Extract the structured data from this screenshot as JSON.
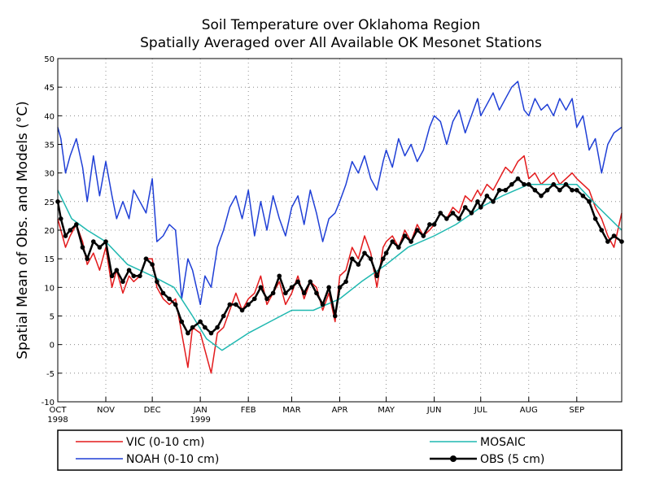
{
  "chart_data": {
    "type": "line",
    "title": "Soil Temperature over Oklahoma Region",
    "subtitle": "Spatially Averaged over All Available OK Mesonet Stations",
    "ylabel": "Spatial Mean of Obs. and Models (°C)",
    "ylim": [
      -10,
      50
    ],
    "yticks": [
      -10,
      -5,
      0,
      5,
      10,
      15,
      20,
      25,
      30,
      35,
      40,
      45,
      50
    ],
    "xlim": [
      "1998-10-01",
      "1999-09-30"
    ],
    "xticks": [
      {
        "date": "1998-10-01",
        "label": "OCT",
        "sublabel": "1998"
      },
      {
        "date": "1998-11-01",
        "label": "NOV",
        "sublabel": ""
      },
      {
        "date": "1998-12-01",
        "label": "DEC",
        "sublabel": ""
      },
      {
        "date": "1999-01-01",
        "label": "JAN",
        "sublabel": "1999"
      },
      {
        "date": "1999-02-01",
        "label": "FEB",
        "sublabel": ""
      },
      {
        "date": "1999-03-01",
        "label": "MAR",
        "sublabel": ""
      },
      {
        "date": "1999-04-01",
        "label": "APR",
        "sublabel": ""
      },
      {
        "date": "1999-05-01",
        "label": "MAY",
        "sublabel": ""
      },
      {
        "date": "1999-06-01",
        "label": "JUN",
        "sublabel": ""
      },
      {
        "date": "1999-07-01",
        "label": "JUL",
        "sublabel": ""
      },
      {
        "date": "1999-08-01",
        "label": "AUG",
        "sublabel": ""
      },
      {
        "date": "1999-09-01",
        "label": "SEP",
        "sublabel": ""
      }
    ],
    "grid": true,
    "legend": "bottom",
    "series": [
      {
        "name": "VIC (0-10 cm)",
        "color": "#e31a1c",
        "marker": "none",
        "x": [
          "1998-10-01",
          "1998-10-03",
          "1998-10-06",
          "1998-10-09",
          "1998-10-13",
          "1998-10-17",
          "1998-10-20",
          "1998-10-24",
          "1998-10-28",
          "1998-11-01",
          "1998-11-05",
          "1998-11-08",
          "1998-11-12",
          "1998-11-16",
          "1998-11-19",
          "1998-11-23",
          "1998-11-27",
          "1998-12-01",
          "1998-12-04",
          "1998-12-08",
          "1998-12-12",
          "1998-12-16",
          "1998-12-20",
          "1998-12-24",
          "1998-12-27",
          "1999-01-01",
          "1999-01-04",
          "1999-01-08",
          "1999-01-12",
          "1999-01-16",
          "1999-01-20",
          "1999-01-24",
          "1999-01-28",
          "1999-02-01",
          "1999-02-05",
          "1999-02-09",
          "1999-02-13",
          "1999-02-17",
          "1999-02-21",
          "1999-02-25",
          "1999-03-01",
          "1999-03-05",
          "1999-03-09",
          "1999-03-13",
          "1999-03-17",
          "1999-03-21",
          "1999-03-25",
          "1999-03-29",
          "1999-04-01",
          "1999-04-05",
          "1999-04-09",
          "1999-04-13",
          "1999-04-17",
          "1999-04-21",
          "1999-04-25",
          "1999-04-29",
          "1999-05-01",
          "1999-05-05",
          "1999-05-09",
          "1999-05-13",
          "1999-05-17",
          "1999-05-21",
          "1999-05-25",
          "1999-05-29",
          "1999-06-01",
          "1999-06-05",
          "1999-06-09",
          "1999-06-13",
          "1999-06-17",
          "1999-06-21",
          "1999-06-25",
          "1999-06-29",
          "1999-07-01",
          "1999-07-05",
          "1999-07-09",
          "1999-07-13",
          "1999-07-17",
          "1999-07-21",
          "1999-07-25",
          "1999-07-29",
          "1999-08-01",
          "1999-08-05",
          "1999-08-09",
          "1999-08-13",
          "1999-08-17",
          "1999-08-21",
          "1999-08-25",
          "1999-08-29",
          "1999-09-01",
          "1999-09-05",
          "1999-09-09",
          "1999-09-13",
          "1999-09-17",
          "1999-09-21",
          "1999-09-25",
          "1999-09-30"
        ],
        "y": [
          22,
          20,
          17,
          19,
          21,
          18,
          14,
          16,
          13,
          17,
          10,
          13,
          9,
          12,
          11,
          12,
          15,
          15,
          10,
          8,
          7,
          8,
          2,
          -4,
          3,
          2,
          -1,
          -5,
          2,
          3,
          6,
          9,
          6,
          8,
          9,
          12,
          7,
          9,
          11,
          7,
          9,
          12,
          8,
          11,
          10,
          6,
          9,
          4,
          12,
          13,
          17,
          15,
          19,
          16,
          10,
          17,
          18,
          19,
          17,
          20,
          18,
          21,
          19,
          20,
          21,
          23,
          22,
          24,
          23,
          26,
          25,
          27,
          26,
          28,
          27,
          29,
          31,
          30,
          32,
          33,
          29,
          30,
          28,
          29,
          30,
          28,
          29,
          30,
          29,
          28,
          27,
          24,
          22,
          19,
          17,
          23
        ]
      },
      {
        "name": "NOAH (0-10 cm)",
        "color": "#1f3fd6",
        "marker": "none",
        "x": [
          "1998-10-01",
          "1998-10-03",
          "1998-10-06",
          "1998-10-09",
          "1998-10-13",
          "1998-10-17",
          "1998-10-20",
          "1998-10-24",
          "1998-10-28",
          "1998-11-01",
          "1998-11-05",
          "1998-11-08",
          "1998-11-12",
          "1998-11-16",
          "1998-11-19",
          "1998-11-23",
          "1998-11-27",
          "1998-12-01",
          "1998-12-04",
          "1998-12-08",
          "1998-12-12",
          "1998-12-16",
          "1998-12-20",
          "1998-12-24",
          "1998-12-27",
          "1999-01-01",
          "1999-01-04",
          "1999-01-08",
          "1999-01-12",
          "1999-01-16",
          "1999-01-20",
          "1999-01-24",
          "1999-01-28",
          "1999-02-01",
          "1999-02-05",
          "1999-02-09",
          "1999-02-13",
          "1999-02-17",
          "1999-02-21",
          "1999-02-25",
          "1999-03-01",
          "1999-03-05",
          "1999-03-09",
          "1999-03-13",
          "1999-03-17",
          "1999-03-21",
          "1999-03-25",
          "1999-03-29",
          "1999-04-01",
          "1999-04-05",
          "1999-04-09",
          "1999-04-13",
          "1999-04-17",
          "1999-04-21",
          "1999-04-25",
          "1999-04-29",
          "1999-05-01",
          "1999-05-05",
          "1999-05-09",
          "1999-05-13",
          "1999-05-17",
          "1999-05-21",
          "1999-05-25",
          "1999-05-29",
          "1999-06-01",
          "1999-06-05",
          "1999-06-09",
          "1999-06-13",
          "1999-06-17",
          "1999-06-21",
          "1999-06-25",
          "1999-06-29",
          "1999-07-01",
          "1999-07-05",
          "1999-07-09",
          "1999-07-13",
          "1999-07-17",
          "1999-07-21",
          "1999-07-25",
          "1999-07-29",
          "1999-08-01",
          "1999-08-05",
          "1999-08-09",
          "1999-08-13",
          "1999-08-17",
          "1999-08-21",
          "1999-08-25",
          "1999-08-29",
          "1999-09-01",
          "1999-09-05",
          "1999-09-09",
          "1999-09-13",
          "1999-09-17",
          "1999-09-21",
          "1999-09-25",
          "1999-09-30"
        ],
        "y": [
          38,
          36,
          30,
          33,
          36,
          31,
          25,
          33,
          26,
          32,
          26,
          22,
          25,
          22,
          27,
          25,
          23,
          29,
          18,
          19,
          21,
          20,
          8,
          15,
          13,
          7,
          12,
          10,
          17,
          20,
          24,
          26,
          22,
          27,
          19,
          25,
          20,
          26,
          22,
          19,
          24,
          26,
          21,
          27,
          23,
          18,
          22,
          23,
          25,
          28,
          32,
          30,
          33,
          29,
          27,
          32,
          34,
          31,
          36,
          33,
          35,
          32,
          34,
          38,
          40,
          39,
          35,
          39,
          41,
          37,
          40,
          43,
          40,
          42,
          44,
          41,
          43,
          45,
          46,
          41,
          40,
          43,
          41,
          42,
          40,
          43,
          41,
          43,
          38,
          40,
          34,
          36,
          30,
          35,
          37,
          38
        ]
      },
      {
        "name": "MOSAIC",
        "color": "#1fb8b0",
        "marker": "none",
        "x": [
          "1998-10-01",
          "1998-10-10",
          "1998-10-20",
          "1998-11-01",
          "1998-11-15",
          "1998-12-01",
          "1998-12-15",
          "1998-12-27",
          "1999-01-05",
          "1999-01-15",
          "1999-02-01",
          "1999-02-15",
          "1999-03-01",
          "1999-03-15",
          "1999-04-01",
          "1999-04-15",
          "1999-05-01",
          "1999-05-15",
          "1999-06-01",
          "1999-06-15",
          "1999-07-01",
          "1999-07-15",
          "1999-08-01",
          "1999-08-15",
          "1999-09-01",
          "1999-09-15",
          "1999-09-30"
        ],
        "y": [
          27,
          22,
          20,
          18,
          14,
          12,
          10,
          5,
          1,
          -1,
          2,
          4,
          6,
          6,
          8,
          11,
          14,
          17,
          19,
          21,
          24,
          26,
          28,
          28,
          28,
          24,
          20
        ]
      },
      {
        "name": "OBS (5 cm)",
        "color": "#000000",
        "marker": "circle",
        "x": [
          "1998-10-01",
          "1998-10-03",
          "1998-10-06",
          "1998-10-09",
          "1998-10-13",
          "1998-10-17",
          "1998-10-20",
          "1998-10-24",
          "1998-10-28",
          "1998-11-01",
          "1998-11-05",
          "1998-11-08",
          "1998-11-12",
          "1998-11-16",
          "1998-11-19",
          "1998-11-23",
          "1998-11-27",
          "1998-12-01",
          "1998-12-04",
          "1998-12-08",
          "1998-12-12",
          "1998-12-16",
          "1998-12-20",
          "1998-12-24",
          "1998-12-27",
          "1999-01-01",
          "1999-01-04",
          "1999-01-08",
          "1999-01-12",
          "1999-01-16",
          "1999-01-20",
          "1999-01-24",
          "1999-01-28",
          "1999-02-01",
          "1999-02-05",
          "1999-02-09",
          "1999-02-13",
          "1999-02-17",
          "1999-02-21",
          "1999-02-25",
          "1999-03-01",
          "1999-03-05",
          "1999-03-09",
          "1999-03-13",
          "1999-03-17",
          "1999-03-21",
          "1999-03-25",
          "1999-03-29",
          "1999-04-01",
          "1999-04-05",
          "1999-04-09",
          "1999-04-13",
          "1999-04-17",
          "1999-04-21",
          "1999-04-25",
          "1999-04-29",
          "1999-05-01",
          "1999-05-05",
          "1999-05-09",
          "1999-05-13",
          "1999-05-17",
          "1999-05-21",
          "1999-05-25",
          "1999-05-29",
          "1999-06-01",
          "1999-06-05",
          "1999-06-09",
          "1999-06-13",
          "1999-06-17",
          "1999-06-21",
          "1999-06-25",
          "1999-06-29",
          "1999-07-01",
          "1999-07-05",
          "1999-07-09",
          "1999-07-13",
          "1999-07-17",
          "1999-07-21",
          "1999-07-25",
          "1999-07-29",
          "1999-08-01",
          "1999-08-05",
          "1999-08-09",
          "1999-08-13",
          "1999-08-17",
          "1999-08-21",
          "1999-08-25",
          "1999-08-29",
          "1999-09-01",
          "1999-09-05",
          "1999-09-09",
          "1999-09-13",
          "1999-09-17",
          "1999-09-21",
          "1999-09-25",
          "1999-09-30"
        ],
        "y": [
          25,
          22,
          19,
          20,
          21,
          17,
          15,
          18,
          17,
          18,
          12,
          13,
          11,
          13,
          12,
          12,
          15,
          14,
          11,
          9,
          8,
          7,
          4,
          2,
          3,
          4,
          3,
          2,
          3,
          5,
          7,
          7,
          6,
          7,
          8,
          10,
          8,
          9,
          12,
          9,
          10,
          11,
          9,
          11,
          9,
          7,
          10,
          5,
          10,
          11,
          15,
          14,
          16,
          15,
          12,
          15,
          16,
          18,
          17,
          19,
          18,
          20,
          19,
          21,
          21,
          23,
          22,
          23,
          22,
          24,
          23,
          25,
          24,
          26,
          25,
          27,
          27,
          28,
          29,
          28,
          28,
          27,
          26,
          27,
          28,
          27,
          28,
          27,
          27,
          26,
          25,
          22,
          20,
          18,
          19,
          18
        ]
      }
    ]
  }
}
